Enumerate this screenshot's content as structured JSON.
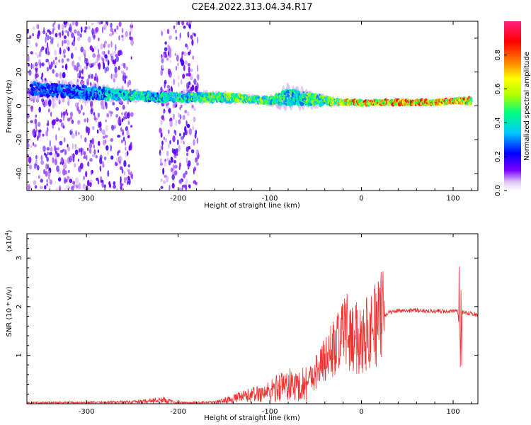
{
  "title": "C2E4.2022.313.04.34.R17",
  "chart_data": [
    {
      "type": "heatmap",
      "xlabel": "Height of straight line (km)",
      "ylabel": "Frequency (Hz)",
      "xlim": [
        -365,
        127
      ],
      "ylim": [
        -50,
        50
      ],
      "xticks": [
        -300,
        -200,
        -100,
        0,
        100
      ],
      "xtick_labels": [
        "-300",
        "-200",
        "-100",
        "0",
        "100"
      ],
      "yticks": [
        -40,
        -20,
        0,
        20,
        40
      ],
      "ytick_labels": [
        "-40",
        "-20",
        "0",
        "20",
        "40"
      ],
      "colorbar": {
        "label": "Normalized spectral amplitude",
        "range": [
          0,
          1
        ],
        "ticks": [
          0.0,
          0.2,
          0.4,
          0.6,
          0.8
        ],
        "tick_labels": [
          "0.0",
          "0.2",
          "0.4",
          "0.6",
          "0.8"
        ],
        "colormap": [
          "#ffffff",
          "#e0c8f8",
          "#7a00ff",
          "#0000ff",
          "#00c8ff",
          "#00ff80",
          "#aaff00",
          "#ffff00",
          "#ff8000",
          "#ff0000",
          "#ff2080"
        ]
      },
      "regions": [
        {
          "x_range": [
            -365,
            -250
          ],
          "f_range": [
            -50,
            50
          ],
          "amplitude": 0.15,
          "note": "broadband noise"
        },
        {
          "x_range": [
            -220,
            -178
          ],
          "f_range": [
            -50,
            50
          ],
          "amplitude": 0.15,
          "note": "broadband noise"
        }
      ],
      "band": {
        "x": [
          -360,
          -300,
          -250,
          -220,
          -200,
          -150,
          -120,
          -100,
          -80,
          -60,
          -40,
          -20,
          0,
          40,
          80,
          100,
          120
        ],
        "f_center": [
          10,
          8,
          6,
          5,
          5,
          5,
          4,
          3,
          5,
          4,
          3,
          2,
          2,
          2,
          2,
          3,
          3
        ],
        "f_halfwidth": [
          6,
          6,
          4,
          4,
          4,
          4,
          3,
          3,
          8,
          6,
          4,
          2,
          2,
          2,
          2,
          2,
          3
        ],
        "amplitude": [
          0.3,
          0.35,
          0.5,
          0.45,
          0.5,
          0.6,
          0.6,
          0.55,
          0.5,
          0.55,
          0.55,
          0.75,
          0.85,
          0.9,
          0.9,
          0.9,
          0.8
        ]
      }
    },
    {
      "type": "line",
      "xlabel": "Height of straight line (km)",
      "ylabel": "SNR (10 * v/v)",
      "y_multiplier": "(x10⁴)",
      "y_multiplier_base": "(x10",
      "y_multiplier_exp": "4",
      "y_multiplier_close": ")",
      "xlim": [
        -365,
        127
      ],
      "ylim": [
        0,
        35000
      ],
      "xticks": [
        -300,
        -200,
        -100,
        0,
        100
      ],
      "xtick_labels": [
        "-300",
        "-200",
        "-100",
        "0",
        "100"
      ],
      "yticks": [
        10000,
        20000,
        30000
      ],
      "ytick_labels": [
        "1",
        "2",
        "3"
      ],
      "color": "#ee3333",
      "x": [
        -365,
        -300,
        -250,
        -215,
        -205,
        -190,
        -160,
        -140,
        -120,
        -100,
        -90,
        -80,
        -70,
        -60,
        -50,
        -40,
        -30,
        -20,
        -10,
        0,
        10,
        20,
        30,
        40,
        60,
        80,
        100,
        105,
        108,
        110,
        115,
        127
      ],
      "y": [
        200,
        250,
        350,
        800,
        300,
        200,
        300,
        1000,
        1800,
        2500,
        3500,
        4000,
        3500,
        4500,
        6500,
        9000,
        11500,
        13500,
        13500,
        13500,
        15500,
        17500,
        18800,
        19200,
        19200,
        19100,
        19000,
        19000,
        12000,
        18800,
        18800,
        18200
      ]
    }
  ]
}
